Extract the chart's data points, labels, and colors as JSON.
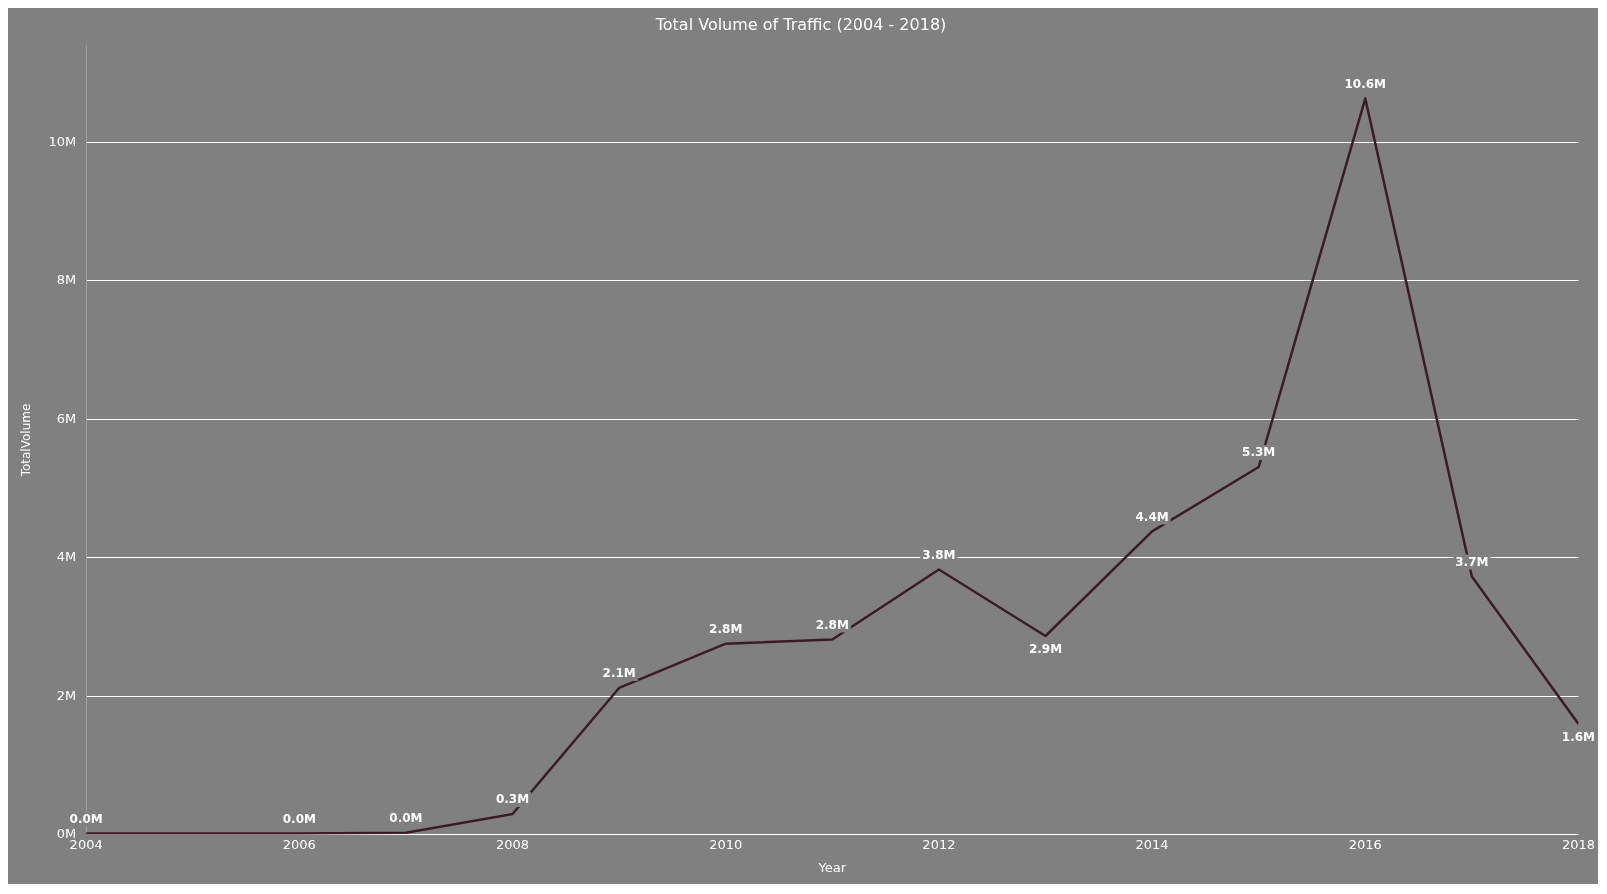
{
  "chart_data": {
    "type": "line",
    "title": "Total Volume of Traffic (2004 - 2018)",
    "xlabel": "Year",
    "ylabel": "TotalVolume",
    "x": [
      2004,
      2006,
      2007,
      2008,
      2009,
      2010,
      2011,
      2012,
      2013,
      2014,
      2015,
      2016,
      2017,
      2018
    ],
    "series": [
      {
        "color": "#3b1c24",
        "values": [
          0.02,
          0.02,
          0.03,
          0.3,
          2.12,
          2.76,
          2.82,
          3.83,
          2.87,
          4.38,
          5.31,
          10.63,
          3.73,
          1.6
        ],
        "value_labels": [
          "0.0M",
          "0.0M",
          "0.0M",
          "0.3M",
          "2.1M",
          "2.8M",
          "2.8M",
          "3.8M",
          "2.9M",
          "4.4M",
          "5.3M",
          "10.6M",
          "3.7M",
          "1.6M"
        ]
      }
    ],
    "xlim": [
      2004,
      2018
    ],
    "xticks": [
      2004,
      2006,
      2008,
      2010,
      2012,
      2014,
      2016,
      2018
    ],
    "ylim": [
      0,
      11.4
    ],
    "yticks": [
      {
        "value": 0,
        "label": "0M"
      },
      {
        "value": 2,
        "label": "2M"
      },
      {
        "value": 4,
        "label": "4M"
      },
      {
        "value": 6,
        "label": "6M"
      },
      {
        "value": 8,
        "label": "8M"
      },
      {
        "value": 10,
        "label": "10M"
      }
    ],
    "grid": "y",
    "legend": false,
    "marker": "none",
    "line_style": "solid"
  }
}
